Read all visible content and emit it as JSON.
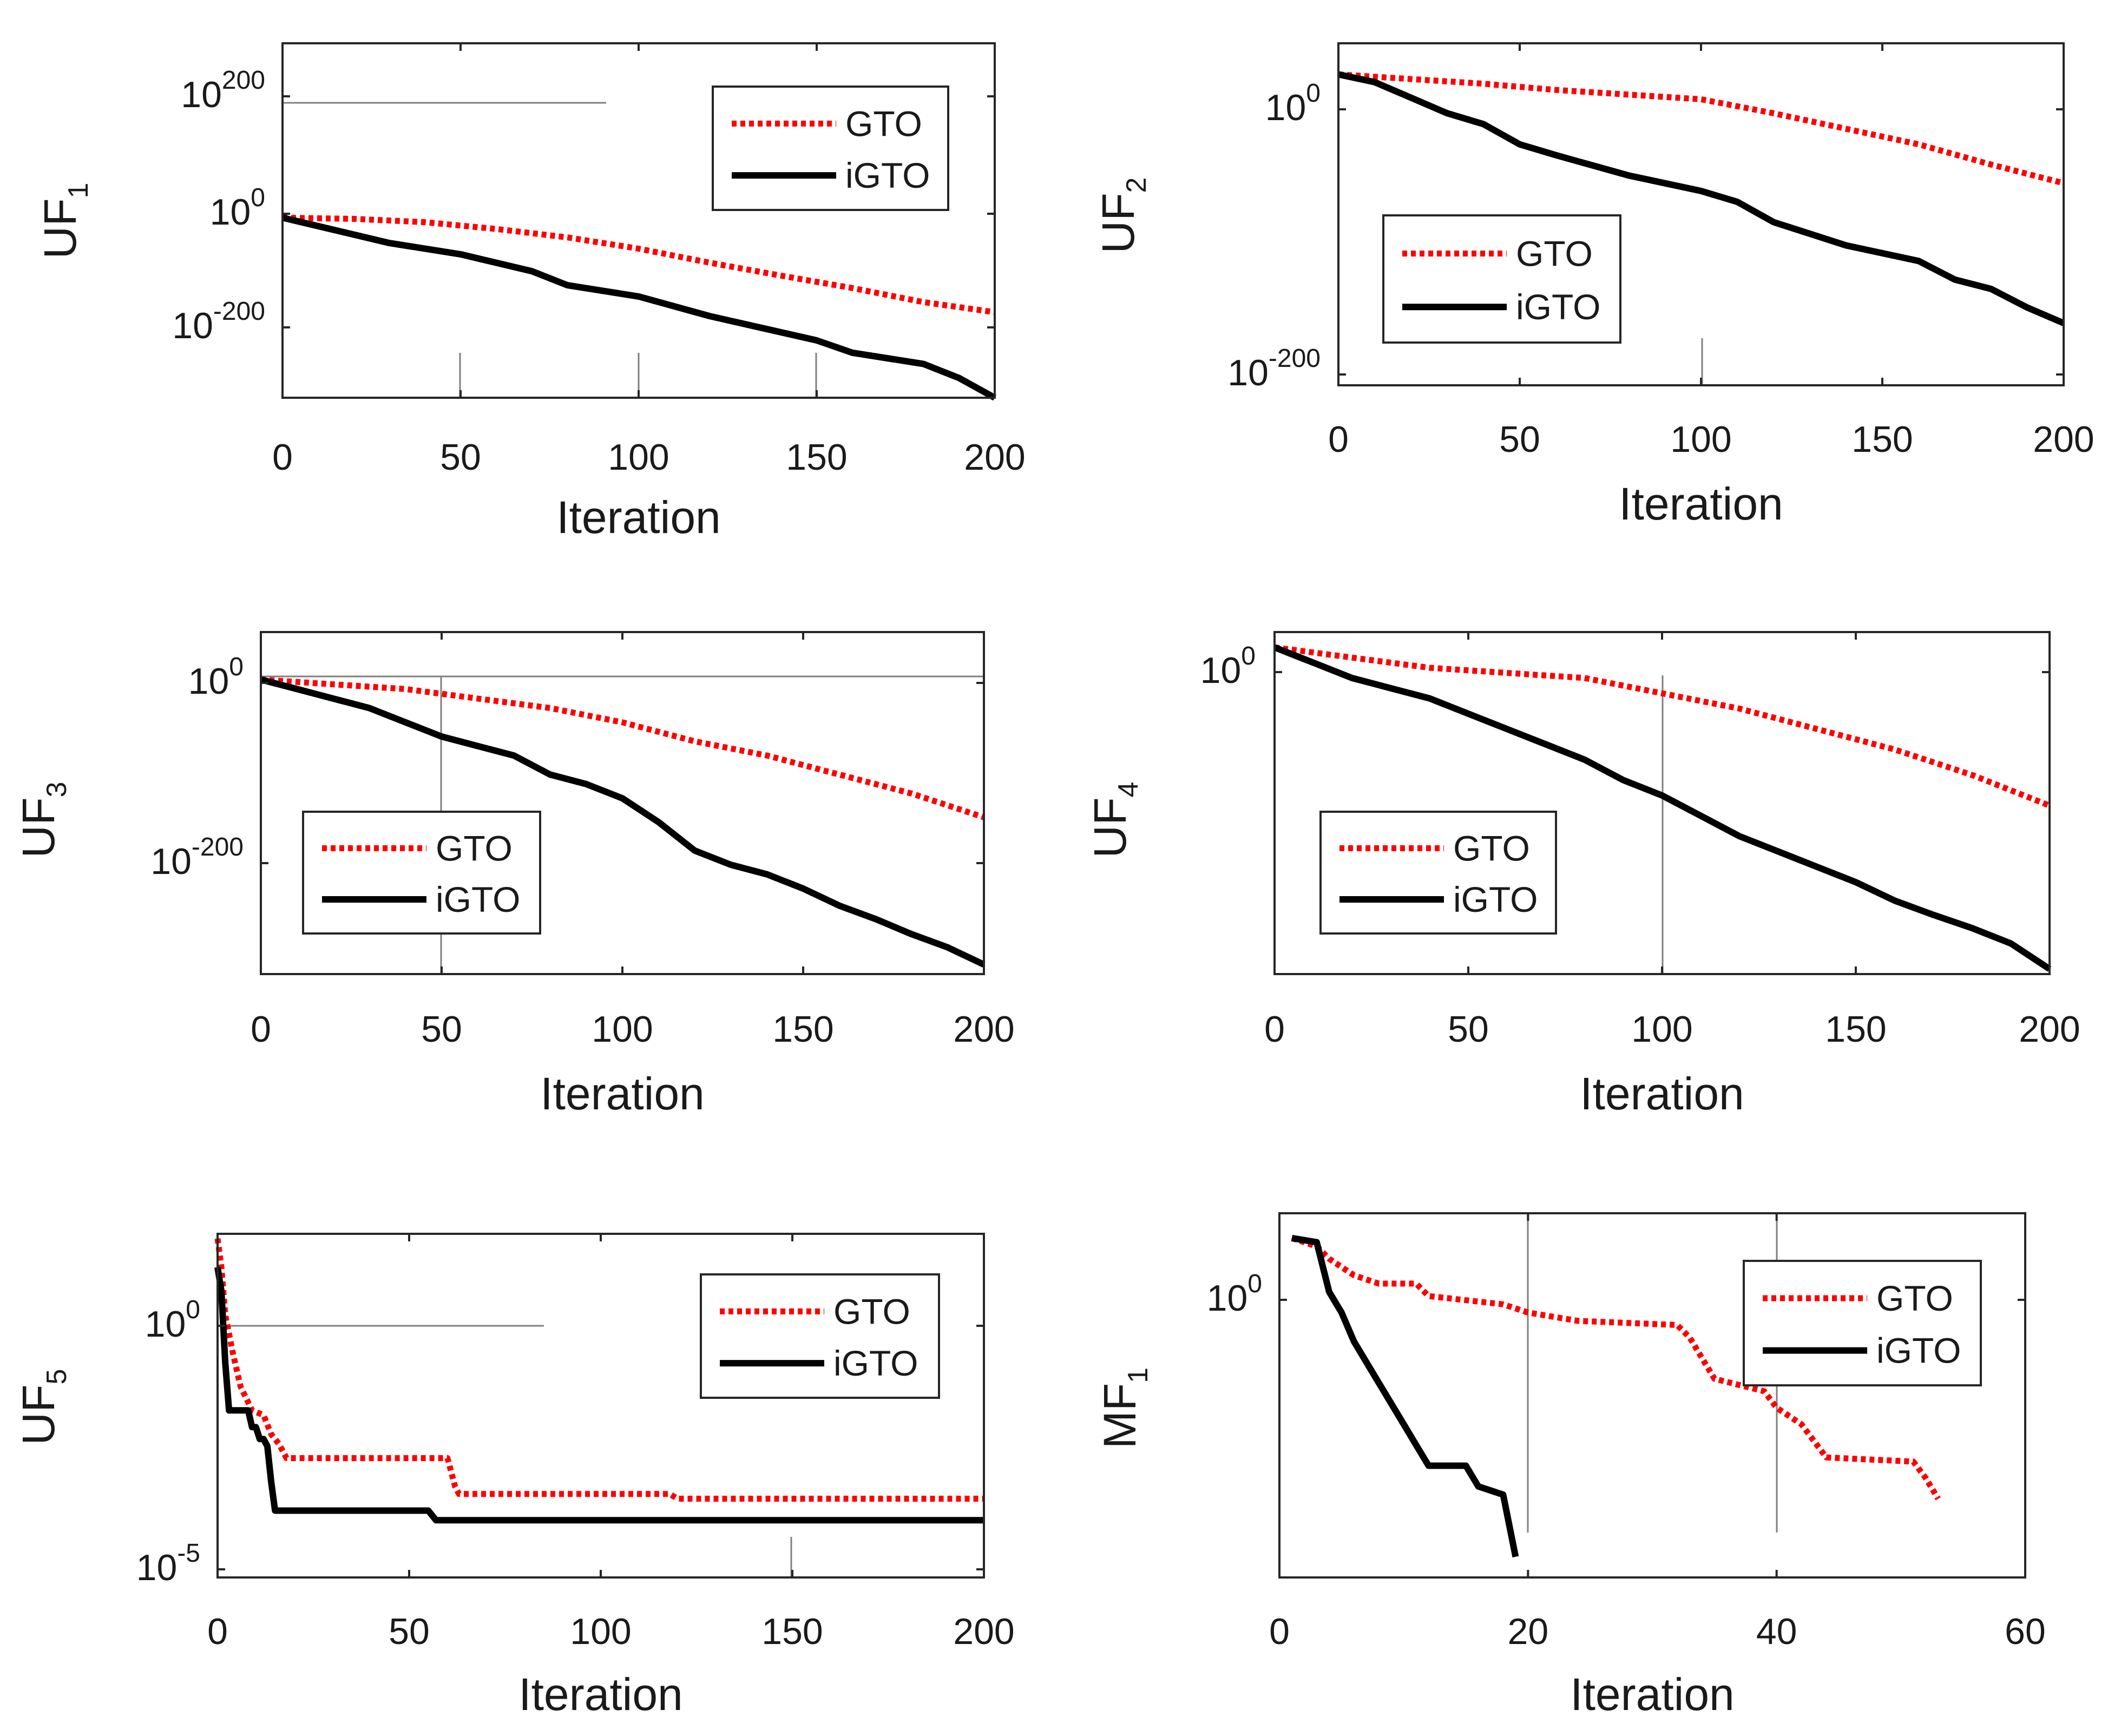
{
  "colors": {
    "gto": "#ff0000",
    "igto": "#000000",
    "frame": "#262626",
    "annotation": "#7f7f7f"
  },
  "panels": [
    {
      "id": "uf1",
      "ylabel": {
        "base": "UF",
        "sub": "1"
      },
      "xlabel": "Iteration",
      "xticks": [
        "0",
        "50",
        "100",
        "150",
        "200"
      ],
      "yticks": [
        {
          "base": "10",
          "exp": "200"
        },
        {
          "base": "10",
          "exp": "0"
        },
        {
          "base": "10",
          "exp": "-200"
        }
      ],
      "legend": [
        "GTO",
        "iGTO"
      ]
    },
    {
      "id": "uf2",
      "ylabel": {
        "base": "UF",
        "sub": "2"
      },
      "xlabel": "Iteration",
      "xticks": [
        "0",
        "50",
        "100",
        "150",
        "200"
      ],
      "yticks": [
        {
          "base": "10",
          "exp": "0"
        },
        {
          "base": "10",
          "exp": "-200"
        }
      ],
      "legend": [
        "GTO",
        "iGTO"
      ]
    },
    {
      "id": "uf3",
      "ylabel": {
        "base": "UF",
        "sub": "3"
      },
      "xlabel": "Iteration",
      "xticks": [
        "0",
        "50",
        "100",
        "150",
        "200"
      ],
      "yticks": [
        {
          "base": "10",
          "exp": "0"
        },
        {
          "base": "10",
          "exp": "-200"
        }
      ],
      "legend": [
        "GTO",
        "iGTO"
      ]
    },
    {
      "id": "uf4",
      "ylabel": {
        "base": "UF",
        "sub": "4"
      },
      "xlabel": "Iteration",
      "xticks": [
        "0",
        "50",
        "100",
        "150",
        "200"
      ],
      "yticks": [
        {
          "base": "10",
          "exp": "0"
        }
      ],
      "legend": [
        "GTO",
        "iGTO"
      ]
    },
    {
      "id": "uf5",
      "ylabel": {
        "base": "UF",
        "sub": "5"
      },
      "xlabel": "Iteration",
      "xticks": [
        "0",
        "50",
        "100",
        "150",
        "200"
      ],
      "yticks": [
        {
          "base": "10",
          "exp": "0"
        },
        {
          "base": "10",
          "exp": "-5"
        }
      ],
      "legend": [
        "GTO",
        "iGTO"
      ]
    },
    {
      "id": "mf1",
      "ylabel": {
        "base": "MF",
        "sub": "1"
      },
      "xlabel": "Iteration",
      "xticks": [
        "0",
        "20",
        "40",
        "60"
      ],
      "yticks": [
        {
          "base": "10",
          "exp": "0"
        }
      ],
      "legend": [
        "GTO",
        "iGTO"
      ]
    }
  ],
  "chart_data": [
    {
      "id": "uf1",
      "type": "line",
      "yscale": "log10",
      "xlim": [
        0,
        200
      ],
      "ylim_exponent": [
        -320,
        310
      ],
      "series": [
        {
          "name": "GTO",
          "style": "dotted",
          "x": [
            0,
            20,
            40,
            60,
            80,
            100,
            120,
            140,
            160,
            180,
            200
          ],
          "log10_y": [
            0,
            -2,
            -8,
            -20,
            -35,
            -55,
            -80,
            -103,
            -125,
            -150,
            -168
          ]
        },
        {
          "name": "iGTO",
          "style": "solid",
          "x": [
            0,
            10,
            30,
            50,
            70,
            80,
            100,
            120,
            150,
            160,
            180,
            190,
            200
          ],
          "log10_y": [
            0,
            -15,
            -45,
            -65,
            -95,
            -120,
            -140,
            -175,
            -218,
            -240,
            -260,
            -285,
            -320
          ]
        }
      ]
    },
    {
      "id": "uf2",
      "type": "line",
      "yscale": "log10",
      "xlim": [
        0,
        200
      ],
      "ylim_exponent": [
        -200,
        20
      ],
      "series": [
        {
          "name": "GTO",
          "style": "dotted",
          "x": [
            0,
            20,
            40,
            60,
            80,
            100,
            120,
            140,
            160,
            180,
            200
          ],
          "log10_y": [
            0,
            -3,
            -6,
            -10,
            -13,
            -16,
            -25,
            -35,
            -45,
            -58,
            -70
          ]
        },
        {
          "name": "iGTO",
          "style": "solid",
          "x": [
            0,
            10,
            20,
            30,
            40,
            50,
            60,
            80,
            100,
            110,
            120,
            140,
            160,
            170,
            180,
            190,
            200
          ],
          "log10_y": [
            0,
            -5,
            -15,
            -25,
            -32,
            -45,
            -52,
            -65,
            -75,
            -82,
            -95,
            -110,
            -120,
            -132,
            -138,
            -150,
            -160
          ]
        }
      ]
    },
    {
      "id": "uf3",
      "type": "line",
      "yscale": "log10",
      "xlim": [
        0,
        200
      ],
      "ylim_exponent": [
        -310,
        50
      ],
      "series": [
        {
          "name": "GTO",
          "style": "dotted",
          "x": [
            0,
            20,
            40,
            60,
            80,
            100,
            120,
            140,
            160,
            180,
            200
          ],
          "log10_y": [
            0,
            -5,
            -10,
            -20,
            -30,
            -45,
            -65,
            -80,
            -100,
            -120,
            -145
          ]
        },
        {
          "name": "iGTO",
          "style": "solid",
          "x": [
            0,
            10,
            20,
            30,
            40,
            50,
            60,
            70,
            80,
            90,
            100,
            110,
            120,
            130,
            140,
            150,
            160,
            170,
            180,
            190,
            200
          ],
          "log10_y": [
            0,
            -10,
            -20,
            -30,
            -45,
            -60,
            -70,
            -80,
            -100,
            -110,
            -125,
            -150,
            -180,
            -195,
            -205,
            -220,
            -238,
            -252,
            -268,
            -282,
            -300
          ]
        }
      ]
    },
    {
      "id": "uf4",
      "type": "line",
      "yscale": "log10",
      "xlim": [
        0,
        200
      ],
      "ylim_exponent": [
        -320,
        15
      ],
      "series": [
        {
          "name": "GTO",
          "style": "dotted",
          "x": [
            0,
            20,
            40,
            60,
            80,
            100,
            120,
            140,
            160,
            180,
            200
          ],
          "log10_y": [
            0,
            -10,
            -20,
            -25,
            -30,
            -45,
            -60,
            -80,
            -100,
            -125,
            -155
          ]
        },
        {
          "name": "iGTO",
          "style": "solid",
          "x": [
            0,
            10,
            20,
            30,
            40,
            50,
            60,
            70,
            80,
            90,
            100,
            110,
            120,
            130,
            140,
            150,
            160,
            170,
            180,
            190,
            200
          ],
          "log10_y": [
            0,
            -15,
            -30,
            -40,
            -50,
            -65,
            -80,
            -95,
            -110,
            -130,
            -145,
            -165,
            -185,
            -200,
            -215,
            -230,
            -248,
            -262,
            -275,
            -290,
            -315
          ]
        }
      ]
    },
    {
      "id": "uf5",
      "type": "line",
      "yscale": "log10",
      "xlim": [
        0,
        200
      ],
      "ylim_exponent": [
        -5.5,
        1.7
      ],
      "series": [
        {
          "name": "GTO",
          "style": "dotted",
          "x": [
            0,
            1,
            2,
            4,
            6,
            9,
            12,
            14,
            16,
            18,
            30,
            60,
            62,
            63,
            80,
            100,
            118,
            120,
            150,
            200
          ],
          "log10_y": [
            1.6,
            1.0,
            0.0,
            -0.8,
            -1.5,
            -2.0,
            -2.1,
            -2.5,
            -2.7,
            -3.0,
            -3.0,
            -3.0,
            -3.6,
            -3.75,
            -3.75,
            -3.75,
            -3.75,
            -3.85,
            -3.85,
            -3.85
          ]
        },
        {
          "name": "iGTO",
          "style": "solid",
          "x": [
            0,
            1,
            2,
            3,
            5,
            8,
            9,
            10,
            11,
            12,
            13,
            14,
            15,
            16,
            20,
            30,
            40,
            50,
            55,
            57,
            100,
            150,
            200
          ],
          "log10_y": [
            1.0,
            0.5,
            -1.0,
            -2.0,
            -2.0,
            -2.0,
            -2.35,
            -2.35,
            -2.6,
            -2.6,
            -2.75,
            -3.5,
            -4.1,
            -4.1,
            -4.1,
            -4.1,
            -4.1,
            -4.1,
            -4.1,
            -4.3,
            -4.3,
            -4.3,
            -4.3
          ]
        }
      ]
    },
    {
      "id": "mf1",
      "type": "line",
      "yscale": "log10",
      "xlim": [
        0,
        60
      ],
      "ylim_exponent": [
        -0.82,
        0.06
      ],
      "series": [
        {
          "name": "GTO",
          "style": "dotted",
          "x": [
            1,
            3,
            4,
            6,
            8,
            11,
            12,
            18,
            20,
            22,
            24,
            32,
            33,
            35,
            39,
            40,
            42,
            44,
            51,
            52,
            53
          ],
          "log10_y": [
            0.0,
            -0.02,
            -0.05,
            -0.09,
            -0.11,
            -0.11,
            -0.14,
            -0.16,
            -0.18,
            -0.19,
            -0.2,
            -0.21,
            -0.24,
            -0.34,
            -0.37,
            -0.41,
            -0.45,
            -0.53,
            -0.54,
            -0.58,
            -0.63
          ]
        },
        {
          "name": "iGTO",
          "style": "solid",
          "x": [
            1,
            3,
            4,
            5,
            6,
            8,
            10,
            11,
            12,
            15,
            16,
            18,
            19
          ],
          "log10_y": [
            0.0,
            -0.01,
            -0.13,
            -0.18,
            -0.25,
            -0.35,
            -0.45,
            -0.5,
            -0.55,
            -0.55,
            -0.6,
            -0.62,
            -0.77
          ]
        }
      ]
    }
  ]
}
